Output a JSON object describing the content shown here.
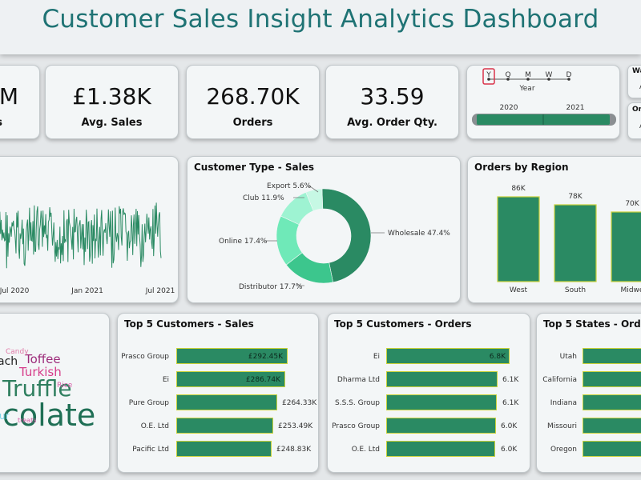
{
  "header": {
    "title": "Customer Sales Insight Analytics Dashboard"
  },
  "kpis": {
    "total_sales": {
      "value": "M",
      "label": "s"
    },
    "avg_sales": {
      "value": "£1.38K",
      "label": "Avg. Sales"
    },
    "orders": {
      "value": "268.70K",
      "label": "Orders"
    },
    "avg_order_qty": {
      "value": "33.59",
      "label": "Avg. Order Qty."
    }
  },
  "date_slicer": {
    "levels": [
      "Y",
      "Q",
      "M",
      "W",
      "D"
    ],
    "selected_level": "Y",
    "level_caption": "Year",
    "range_start": "2020",
    "range_end": "2021"
  },
  "side_slicers": {
    "first_label": "Wa",
    "first_value": "A",
    "second_label": "Or",
    "second_value": "A"
  },
  "sales_trend": {
    "x_ticks": [
      "Jul 2020",
      "Jan 2021",
      "Jul 2021"
    ]
  },
  "customer_type": {
    "title": "Customer Type - Sales",
    "slices": [
      {
        "label": "Wholesale 47.4%",
        "value": 47.4,
        "color": "#2a8a63"
      },
      {
        "label": "Distributor 17.7%",
        "value": 17.7,
        "color": "#3cc68d"
      },
      {
        "label": "Online 17.4%",
        "value": 17.4,
        "color": "#6fe9b8"
      },
      {
        "label": "Club 11.9%",
        "value": 11.9,
        "color": "#9ef3d2"
      },
      {
        "label": "Export 5.6%",
        "value": 5.6,
        "color": "#c6f8e4"
      }
    ]
  },
  "orders_by_region": {
    "title": "Orders by Region",
    "categories": [
      "West",
      "South",
      "Midwe"
    ],
    "value_labels": [
      "86K",
      "78K",
      "70K"
    ]
  },
  "word_cloud": {
    "words": [
      {
        "text": "colate",
        "color": "#1f6f55"
      },
      {
        "text": "Truffle",
        "color": "#2f7f5f"
      },
      {
        "text": "Turkish",
        "color": "#d63d8a"
      },
      {
        "text": "Toffee",
        "color": "#9c2b7a"
      },
      {
        "text": "ach",
        "color": "#222222"
      },
      {
        "text": "Candy",
        "color": "#e07aa8"
      },
      {
        "text": "Rice",
        "color": "#d65aa6"
      },
      {
        "text": "treats",
        "color": "#d65aa6"
      },
      {
        "text": "ur",
        "color": "#7dd3e6"
      }
    ]
  },
  "top_customers_sales": {
    "title": "Top 5 Customers - Sales",
    "rows": [
      {
        "name": "Prasco Group",
        "value": "£292.45K"
      },
      {
        "name": "Ei",
        "value": "£286.74K"
      },
      {
        "name": "Pure Group",
        "value": "£264.33K"
      },
      {
        "name": "O.E. Ltd",
        "value": "£253.49K"
      },
      {
        "name": "Pacific Ltd",
        "value": "£248.83K"
      }
    ]
  },
  "top_customers_orders": {
    "title": "Top 5 Customers - Orders",
    "rows": [
      {
        "name": "Ei",
        "value": "6.8K"
      },
      {
        "name": "Dharma Ltd",
        "value": "6.1K"
      },
      {
        "name": "S.S.S. Group",
        "value": "6.1K"
      },
      {
        "name": "Prasco Group",
        "value": "6.0K"
      },
      {
        "name": "O.E. Ltd",
        "value": "6.0K"
      }
    ]
  },
  "top_states_orders": {
    "title": "Top 5 States  - Orders",
    "rows": [
      {
        "name": "Utah"
      },
      {
        "name": "California"
      },
      {
        "name": "Indiana"
      },
      {
        "name": "Missouri"
      },
      {
        "name": "Oregon"
      }
    ]
  },
  "colors": {
    "accent": "#1f7374",
    "bar": "#2a8a63",
    "bar_border": "#c9d23a"
  }
}
